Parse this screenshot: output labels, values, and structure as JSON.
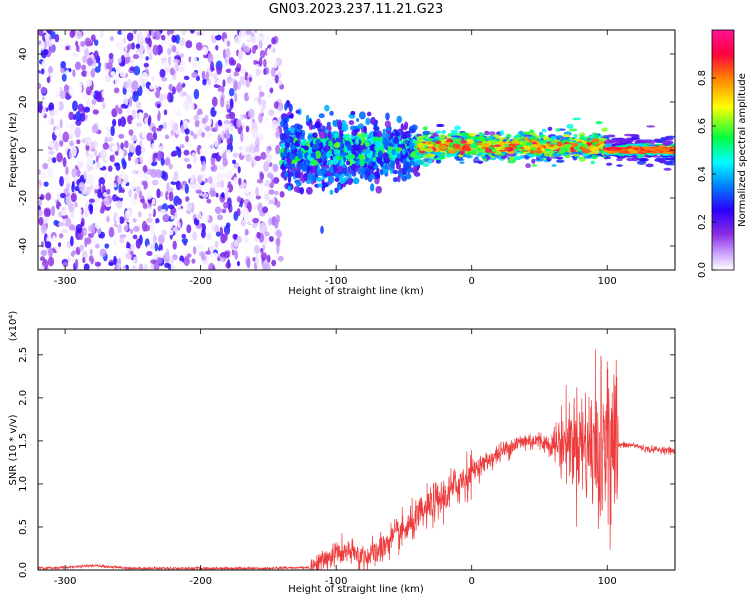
{
  "title": "GN03.2023.237.11.21.G23",
  "colors": {
    "snr_line": "#ee3b3b",
    "spectrogram_cmap": [
      "#ffffff",
      "#d9b3ff",
      "#8a2be2",
      "#2a00ff",
      "#0080ff",
      "#00ffff",
      "#00ff40",
      "#ffff00",
      "#ff8000",
      "#ff0040",
      "#ff1493"
    ]
  },
  "chart_data": [
    {
      "type": "heatmap",
      "name": "spectrogram",
      "title": "GN03.2023.237.11.21.G23",
      "xlabel": "Height of straight line (km)",
      "ylabel": "Frequency (Hz)",
      "xlim": [
        -320,
        150
      ],
      "ylim": [
        -50,
        50
      ],
      "x_ticks": [
        -300,
        -200,
        -100,
        0,
        100
      ],
      "y_ticks": [
        -40,
        -20,
        0,
        20,
        40
      ],
      "colorbar": {
        "label": "Normalized spectral amplitude",
        "range": [
          0,
          1
        ],
        "ticks": [
          "0.0",
          "0.2",
          "0.4",
          "0.6",
          "0.8"
        ]
      },
      "description_points": [
        {
          "x_range": [
            -320,
            -140
          ],
          "freq_spread": [
            -50,
            50
          ],
          "amplitude": [
            0.0,
            0.3
          ]
        },
        {
          "x_range": [
            -140,
            -40
          ],
          "freq_spread": [
            -20,
            15
          ],
          "amplitude": [
            0.2,
            0.6
          ]
        },
        {
          "x_range": [
            -40,
            100
          ],
          "freq_spread": [
            -3,
            5
          ],
          "amplitude": [
            0.4,
            0.95
          ]
        },
        {
          "x_range": [
            100,
            150
          ],
          "freq_spread": [
            -2,
            2
          ],
          "amplitude": [
            0.3,
            0.9
          ]
        }
      ]
    },
    {
      "type": "line",
      "name": "snr",
      "xlabel": "Height of straight line (km)",
      "ylabel": "SNR (10 * v/v)",
      "y_multiplier": "(x10⁴)",
      "xlim": [
        -320,
        150
      ],
      "ylim": [
        0,
        2.8
      ],
      "x_ticks": [
        -300,
        -200,
        -100,
        0,
        100
      ],
      "y_ticks": [
        "0.0",
        "0.5",
        "1.0",
        "1.5",
        "2.0",
        "2.5"
      ],
      "series": [
        {
          "x": [
            -320,
            -300,
            -280,
            -250,
            -200,
            -150,
            -120,
            -110,
            -100,
            -90,
            -80,
            -70,
            -60,
            -50,
            -40,
            -30,
            -20,
            -10,
            0,
            10,
            20,
            30,
            40,
            50,
            60,
            70,
            80,
            90,
            95,
            100,
            105,
            110,
            120,
            130,
            140,
            150
          ],
          "y": [
            0.02,
            0.03,
            0.05,
            0.02,
            0.02,
            0.02,
            0.03,
            0.1,
            0.2,
            0.2,
            0.15,
            0.2,
            0.35,
            0.45,
            0.6,
            0.75,
            0.85,
            1.0,
            1.15,
            1.25,
            1.35,
            1.45,
            1.5,
            1.5,
            1.45,
            1.5,
            1.5,
            1.4,
            1.3,
            1.35,
            1.45,
            1.45,
            1.45,
            1.4,
            1.4,
            1.38
          ]
        }
      ]
    }
  ]
}
